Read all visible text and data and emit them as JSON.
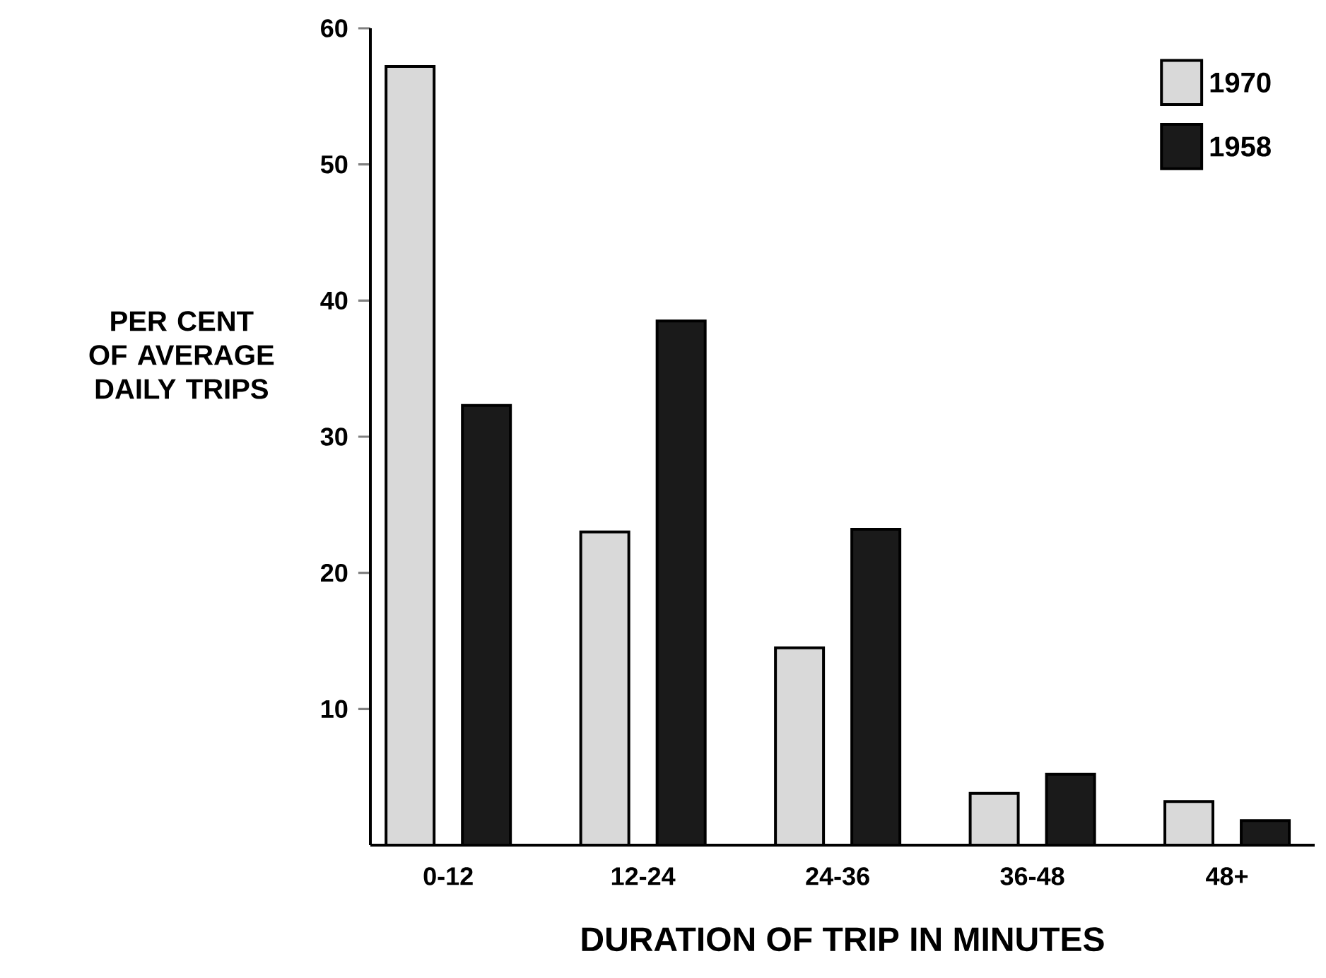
{
  "chart_data": {
    "type": "bar",
    "xlabel": "DURATION OF TRIP IN MINUTES",
    "ylabel": "PER CENT OF AVERAGE DAILY TRIPS",
    "categories": [
      "0-12",
      "12-24",
      "24-36",
      "36-48",
      "48+"
    ],
    "series": [
      {
        "name": "1970",
        "color": "#d9d9d9",
        "values": [
          57.2,
          23,
          14.5,
          3.8,
          3.2
        ]
      },
      {
        "name": "1958",
        "color": "#1a1a1a",
        "values": [
          32.3,
          38.5,
          23.2,
          5.2,
          1.8
        ]
      }
    ],
    "ylim": [
      0,
      60
    ],
    "yticks": [
      10,
      20,
      30,
      40,
      50,
      60
    ],
    "legend": "top right",
    "grid": false
  }
}
